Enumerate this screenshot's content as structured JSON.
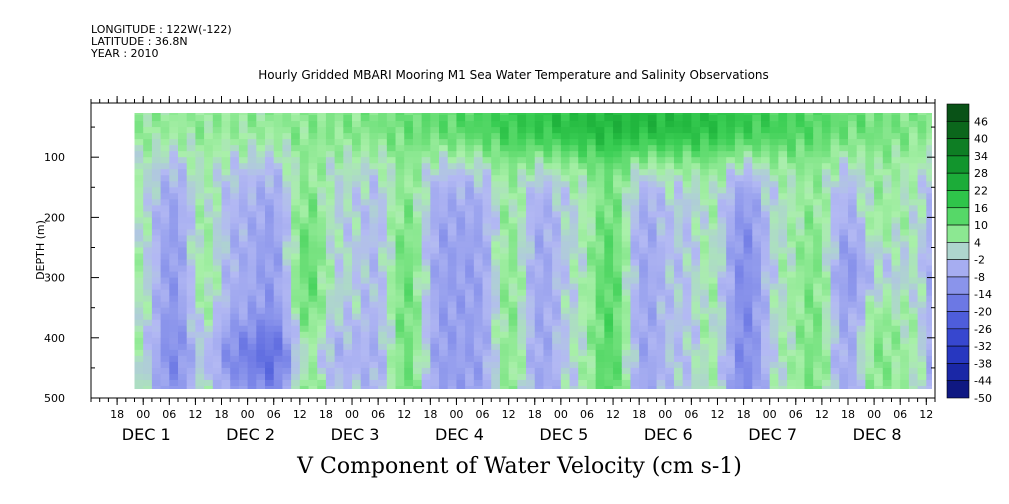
{
  "header": {
    "longitude": "LONGITUDE : 122W(-122)",
    "latitude": "LATITUDE : 36.8N",
    "year": "YEAR : 2010"
  },
  "chart_data": {
    "type": "heatmap",
    "title": "Hourly Gridded MBARI Mooring M1 Sea Water Temperature and Salinity Observations",
    "xlabel": "V Component of Water Velocity (cm s-1)",
    "ylabel": "DEPTH (m)",
    "y_ticks": [
      100,
      200,
      300,
      400,
      500
    ],
    "ylim": [
      500,
      10
    ],
    "y_reversed": true,
    "x_hour_ticks": [
      "18",
      "00",
      "06",
      "12",
      "18",
      "00",
      "06",
      "12",
      "18",
      "00",
      "06",
      "12",
      "18",
      "00",
      "06",
      "12",
      "18",
      "00",
      "06",
      "12",
      "18",
      "00",
      "06",
      "12",
      "18",
      "00",
      "06",
      "12",
      "18",
      "00",
      "06",
      "12"
    ],
    "x_day_labels": [
      {
        "label": "DEC  1",
        "day": 1
      },
      {
        "label": "DEC  2",
        "day": 2
      },
      {
        "label": "DEC  3",
        "day": 3
      },
      {
        "label": "DEC  4",
        "day": 4
      },
      {
        "label": "DEC  5",
        "day": 5
      },
      {
        "label": "DEC  6",
        "day": 6
      },
      {
        "label": "DEC  7",
        "day": 7
      },
      {
        "label": "DEC  8",
        "day": 8
      }
    ],
    "x_range_hours": [
      "2010-11-30 12:00",
      "2010-12-08 14:00"
    ],
    "data_coverage": {
      "depth_range": [
        20,
        485
      ],
      "time_start": "2010-11-30 22:00",
      "time_end": "2010-12-08 14:00"
    },
    "colorbar": {
      "labels": [
        "46",
        "40",
        "34",
        "28",
        "22",
        "16",
        "10",
        "4",
        "-2",
        "-8",
        "-14",
        "-20",
        "-26",
        "-32",
        "-38",
        "-44",
        "-50"
      ],
      "range": [
        -50,
        52
      ]
    },
    "field_description_approx": {
      "surface_layer_0_150m": "positive (green), strongest 16-28 cm/s during Dec 4-7",
      "deep_layer_150_480m": "alternating bands of -2 to -14 (blue) and 4 to 16 (green)",
      "strong_negative_band": "around Dec 1-2 near 400-480 m, about -20"
    }
  },
  "colors": {
    "strong_positive": "#0f5f1a",
    "positive": "#3ccf55",
    "weak_positive": "#a8f0a8",
    "weak_negative": "#a7aef0",
    "negative": "#5c6ae0",
    "strong_negative": "#0a1070"
  }
}
